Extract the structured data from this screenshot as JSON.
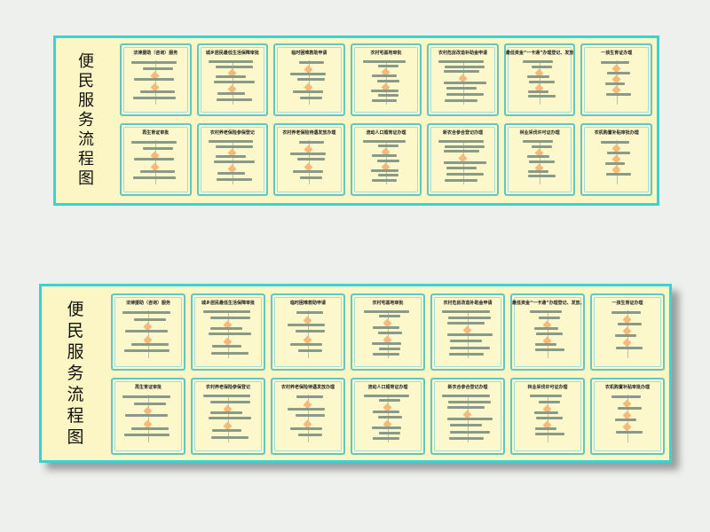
{
  "board_title": "便民服务流程图",
  "board_title_chars": [
    "便",
    "民",
    "服",
    "务",
    "流",
    "程",
    "图"
  ],
  "boards": [
    {
      "name": "top-board"
    },
    {
      "name": "bottom-board"
    }
  ],
  "cards": [
    {
      "title": "法律援助（咨询）服务"
    },
    {
      "title": "城乡居民最低生活保障审批"
    },
    {
      "title": "临时困难救助申请"
    },
    {
      "title": "农村宅基地审批"
    },
    {
      "title": "农村危房改造补助金申请"
    },
    {
      "title": "最低资金“一卡通”办理登记、发放、补卡"
    },
    {
      "title": "一孩生育证办理"
    },
    {
      "title": "再生育证审批"
    },
    {
      "title": "农村养老保险参保登记"
    },
    {
      "title": "农村养老保险待遇发放办理"
    },
    {
      "title": "流动人口婚育证办理"
    },
    {
      "title": "新农合参合登记办理"
    },
    {
      "title": "林业采伐许可证办理"
    },
    {
      "title": "农机购置补贴审批办理"
    }
  ],
  "colors": {
    "board_bg": "#fbf6c4",
    "board_border": "#39d3d6",
    "card_border": "#62c7c4",
    "diamond": "#f7b979",
    "page_bg": "#eef0ee"
  }
}
